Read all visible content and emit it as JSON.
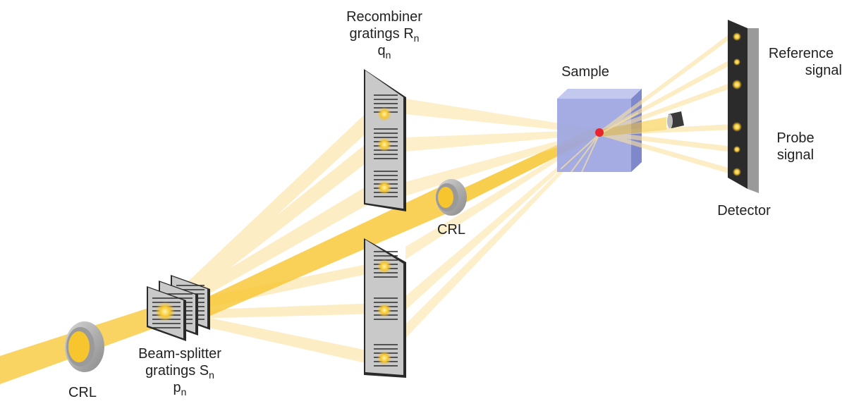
{
  "labels": {
    "recombiner_line1": "Recombiner",
    "recombiner_line2": "gratings R",
    "recombiner_sub": "n",
    "recombiner_q": "q",
    "recombiner_q_sub": "n",
    "sample": "Sample",
    "crl_center": "CRL",
    "crl_left": "CRL",
    "splitter_line1": "Beam-splitter",
    "splitter_line2": "gratings S",
    "splitter_sub": "n",
    "splitter_p": "p",
    "splitter_p_sub": "n",
    "reference_line1": "Reference",
    "reference_line2": "signal",
    "probe_line1": "Probe",
    "probe_line2": "signal",
    "detector": "Detector"
  },
  "colors": {
    "beam": "#f7c62f",
    "beam_light": "#fbe7a6",
    "grating_face": "#c9c9c9",
    "grating_edge": "#2a2a2a",
    "sample_face": "#9aa3e0",
    "sample_top": "#c3c8ef",
    "sample_side": "#8088cc",
    "focus_dot": "#e8232c",
    "crl_ring": "#a9a9a9",
    "detector_face": "#2b2b2b",
    "detector_side": "#9a9a9a"
  }
}
